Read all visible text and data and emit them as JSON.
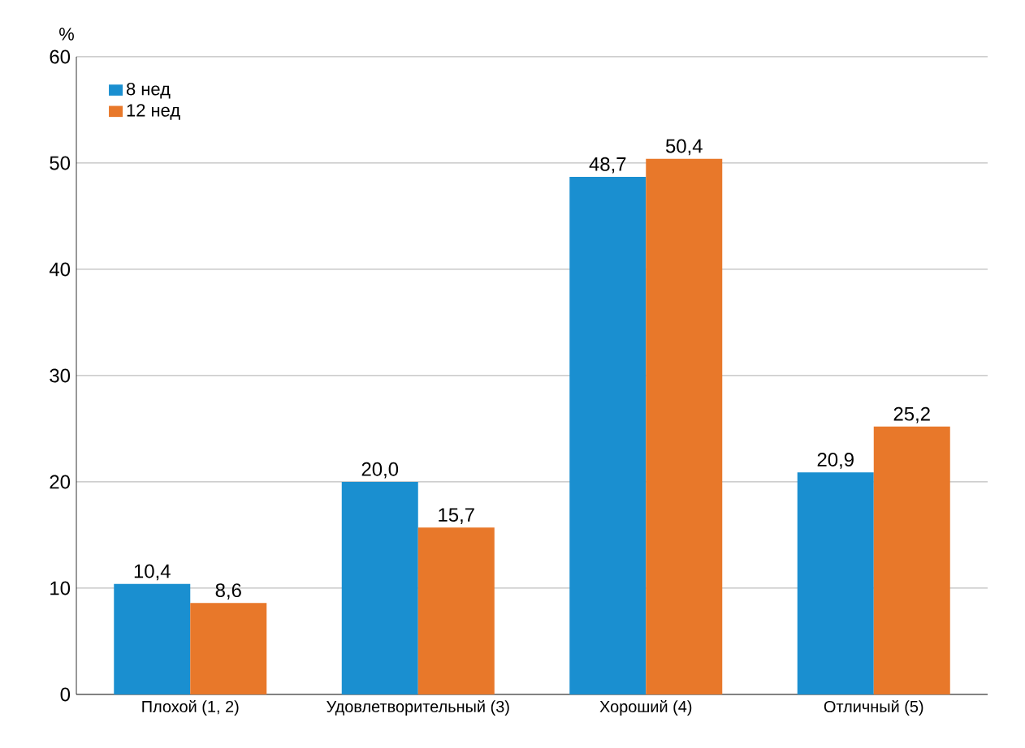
{
  "chart_data": {
    "type": "bar",
    "ylabel": "%",
    "categories": [
      "Плохой (1, 2)",
      "Удовлетворительный (3)",
      "Хороший (4)",
      "Отличный (5)"
    ],
    "series": [
      {
        "name": "8 нед",
        "color": "#1a8fd0",
        "values": [
          10.4,
          20.0,
          48.7,
          20.9
        ],
        "value_labels": [
          "10,4",
          "20,0",
          "48,7",
          "20,9"
        ]
      },
      {
        "name": "12 нед",
        "color": "#e8782a",
        "values": [
          8.6,
          15.7,
          50.4,
          25.2
        ],
        "value_labels": [
          "8,6",
          "15,7",
          "50,4",
          "25,2"
        ]
      }
    ],
    "ylim": [
      0,
      60
    ],
    "yticks": [
      0,
      10,
      20,
      30,
      40,
      50,
      60
    ],
    "grid": "y",
    "legend": "top left"
  }
}
